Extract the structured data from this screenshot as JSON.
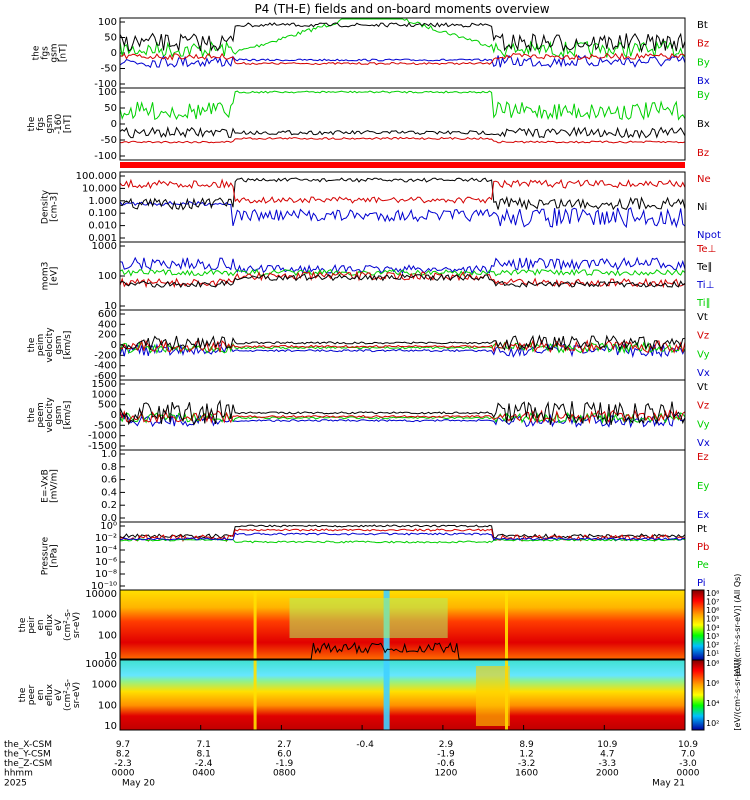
{
  "chart_data": {
    "type": "line",
    "title": "P4 (TH-E) fields and on-board moments overview",
    "panels": [
      {
        "ylabel": [
          "the",
          "fgs",
          "gsm",
          "[nT]"
        ],
        "yticks": [
          "100",
          "50",
          "0",
          "-50",
          "-100"
        ],
        "ylim": [
          -100,
          100
        ],
        "legend": [
          {
            "text": "Bt",
            "color": "#000000"
          },
          {
            "text": "Bz",
            "color": "#d40000"
          },
          {
            "text": "By",
            "color": "#00d000"
          },
          {
            "text": "Bx",
            "color": "#0000d0"
          }
        ]
      },
      {
        "ylabel": [
          "the",
          "fgs",
          "gsm",
          "-160",
          "[nT]"
        ],
        "yticks": [
          "100",
          "50",
          "0",
          "-50",
          "-100"
        ],
        "ylim": [
          -130,
          130
        ],
        "legend": [
          {
            "text": "By",
            "color": "#00d000"
          },
          {
            "text": "Bx",
            "color": "#000000"
          },
          {
            "text": "Bz",
            "color": "#d40000"
          }
        ]
      },
      {
        "ylabel": [
          "Density",
          "[cm-3]"
        ],
        "yticks": [
          "100.000",
          "10.000",
          "1.000",
          "0.100",
          "0.010",
          "0.001"
        ],
        "scale": "log",
        "legend": [
          {
            "text": "Ne",
            "color": "#d40000"
          },
          {
            "text": "Ni",
            "color": "#000000"
          },
          {
            "text": "Npot",
            "color": "#0000d0"
          }
        ]
      },
      {
        "ylabel": [
          "mom3",
          "[eV]"
        ],
        "yticks": [
          "1000",
          "100",
          "10"
        ],
        "scale": "log",
        "legend": [
          {
            "text": "Te⊥",
            "color": "#d40000"
          },
          {
            "text": "Te∥",
            "color": "#000000"
          },
          {
            "text": "Ti⊥",
            "color": "#0000d0"
          },
          {
            "text": "Ti∥",
            "color": "#00d000"
          }
        ]
      },
      {
        "ylabel": [
          "the",
          "peim",
          "velocity",
          "gsm",
          "[km/s]"
        ],
        "yticks": [
          "600",
          "400",
          "200",
          "0",
          "-200",
          "-400",
          "-600"
        ],
        "ylim": [
          -600,
          600
        ],
        "legend": [
          {
            "text": "Vt",
            "color": "#000000"
          },
          {
            "text": "Vz",
            "color": "#d40000"
          },
          {
            "text": "Vy",
            "color": "#00d000"
          },
          {
            "text": "Vx",
            "color": "#0000d0"
          }
        ]
      },
      {
        "ylabel": [
          "the",
          "peem",
          "velocity",
          "gsm",
          "[km/s]"
        ],
        "yticks": [
          "1500",
          "1000",
          "500",
          "0",
          "-500",
          "-1000",
          "-1500"
        ],
        "ylim": [
          -1500,
          1500
        ],
        "legend": [
          {
            "text": "Vt",
            "color": "#000000"
          },
          {
            "text": "Vz",
            "color": "#d40000"
          },
          {
            "text": "Vy",
            "color": "#00d000"
          },
          {
            "text": "Vx",
            "color": "#0000d0"
          }
        ]
      },
      {
        "ylabel": [
          "E=-VxB",
          "[mV/m]"
        ],
        "yticks": [
          "1.0",
          "0.8",
          "0.6",
          "0.4",
          "0.2",
          "0.0"
        ],
        "ylim": [
          0,
          1
        ],
        "legend": [
          {
            "text": "Ez",
            "color": "#d40000"
          },
          {
            "text": "Ey",
            "color": "#00d000"
          },
          {
            "text": "Ex",
            "color": "#0000d0"
          }
        ]
      },
      {
        "ylabel": [
          "Pressure",
          "[nPa]"
        ],
        "yticks": [
          "10⁰",
          "10⁻²",
          "10⁻⁴",
          "10⁻⁶",
          "10⁻⁸",
          "10⁻¹⁰"
        ],
        "scale": "log",
        "legend": [
          {
            "text": "Pt",
            "color": "#000000"
          },
          {
            "text": "Pb",
            "color": "#d40000"
          },
          {
            "text": "Pe",
            "color": "#00d000"
          },
          {
            "text": "Pi",
            "color": "#0000d0"
          }
        ]
      },
      {
        "type": "heatmap",
        "ylabel": [
          "the",
          "peir",
          "en",
          "eflux",
          "eV",
          "(cm²-s-",
          "sr-eV)"
        ],
        "yticks": [
          "10000",
          "1000",
          "100",
          "10"
        ],
        "colorbar": [
          "10⁸",
          "10⁷",
          "10⁶",
          "10⁵",
          "10⁴",
          "10³",
          "10²",
          "10¹"
        ],
        "colorbar_label": "[eV/(cm²-s-sr-eV)] (All Qs)"
      },
      {
        "type": "heatmap",
        "ylabel": [
          "the",
          "peer",
          "en",
          "eflux",
          "eV",
          "(cm²-s-",
          "sr-eV)"
        ],
        "yticks": [
          "10000",
          "1000",
          "100",
          "10"
        ],
        "colorbar": [
          "10⁸",
          "10⁶",
          "10⁴",
          "10²"
        ],
        "colorbar_label": "[eV/(cm²-s-sr-eV)]"
      }
    ],
    "x_rows": [
      {
        "label": "the_X-CSM",
        "values": [
          "9.7",
          "7.1",
          "2.7",
          "-0.4",
          "2.9",
          "8.9",
          "10.9",
          "10.9"
        ]
      },
      {
        "label": "the_Y-CSM",
        "values": [
          "8.2",
          "8.1",
          "6.0",
          "",
          "-1.9",
          "1.2",
          "4.7",
          "7.0"
        ]
      },
      {
        "label": "the_Z-CSM",
        "values": [
          "-2.3",
          "-2.4",
          "-1.9",
          "",
          "-0.6",
          "-3.2",
          "-3.3",
          "-3.0"
        ]
      },
      {
        "label": "hhmm",
        "values": [
          "0000",
          "0400",
          "0800",
          "",
          "1200",
          "1600",
          "2000",
          "0000"
        ]
      }
    ],
    "year": "2025",
    "date_start": "May 20",
    "date_end": "May 21"
  }
}
